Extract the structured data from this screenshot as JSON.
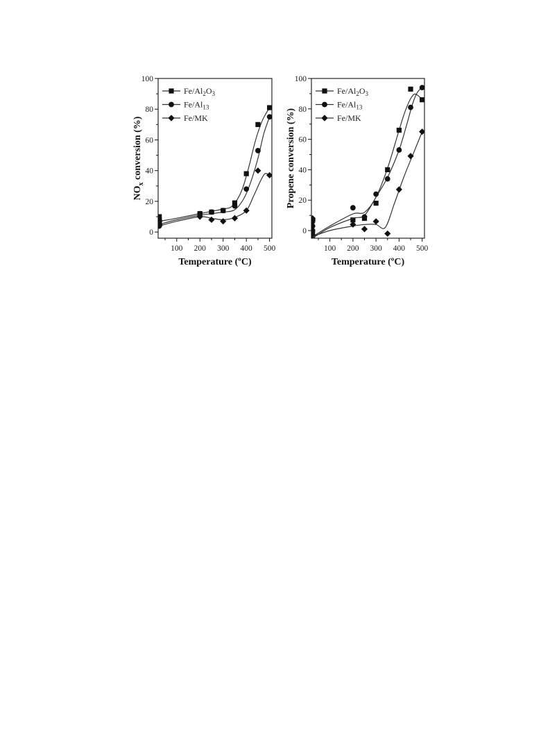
{
  "chart_data": [
    {
      "type": "scatter",
      "panel": "left",
      "xlabel": "Temperature (ºC)",
      "ylabel": "NOx conversion (%)",
      "ylabel_main": "NO",
      "ylabel_sub": "x",
      "ylabel_rest": " conversion (%)",
      "xlim": [
        20,
        510
      ],
      "ylim": [
        -4,
        100
      ],
      "xticks": [
        100,
        200,
        300,
        400,
        500
      ],
      "yticks": [
        0,
        20,
        40,
        60,
        80,
        100
      ],
      "legend_position": "top-left",
      "series": [
        {
          "name": "Fe/Al2O3",
          "legend_parts": [
            [
              "Fe/Al",
              ""
            ],
            [
              "2",
              "sub"
            ],
            [
              "O",
              ""
            ],
            [
              "3",
              "sub"
            ]
          ],
          "marker": "square",
          "points": [
            [
              25,
              10
            ],
            [
              25,
              8
            ],
            [
              25,
              6
            ],
            [
              25,
              5
            ],
            [
              200,
              12
            ],
            [
              250,
              13
            ],
            [
              300,
              14
            ],
            [
              350,
              19
            ],
            [
              400,
              38
            ],
            [
              450,
              70
            ],
            [
              500,
              81
            ]
          ],
          "curve": [
            [
              25,
              7
            ],
            [
              100,
              9
            ],
            [
              200,
              12
            ],
            [
              250,
              13.5
            ],
            [
              300,
              15
            ],
            [
              340,
              17
            ],
            [
              380,
              27
            ],
            [
              410,
              42
            ],
            [
              440,
              60
            ],
            [
              470,
              73
            ],
            [
              500,
              81
            ]
          ]
        },
        {
          "name": "Fe/Al13",
          "legend_parts": [
            [
              "Fe/Al",
              ""
            ],
            [
              "13",
              "sub"
            ]
          ],
          "marker": "circle",
          "points": [
            [
              25,
              8
            ],
            [
              25,
              6
            ],
            [
              25,
              5
            ],
            [
              25,
              4
            ],
            [
              200,
              12
            ],
            [
              250,
              13
            ],
            [
              300,
              14
            ],
            [
              350,
              17
            ],
            [
              400,
              28
            ],
            [
              450,
              53
            ],
            [
              500,
              75
            ]
          ],
          "curve": [
            [
              25,
              5
            ],
            [
              100,
              8
            ],
            [
              200,
              11
            ],
            [
              250,
              12
            ],
            [
              300,
              13
            ],
            [
              350,
              14.5
            ],
            [
              390,
              22
            ],
            [
              420,
              33
            ],
            [
              450,
              48
            ],
            [
              475,
              64
            ],
            [
              500,
              75
            ]
          ]
        },
        {
          "name": "Fe/MK",
          "legend_parts": [
            [
              "Fe/MK",
              ""
            ]
          ],
          "marker": "diamond",
          "points": [
            [
              25,
              7
            ],
            [
              25,
              5
            ],
            [
              25,
              4
            ],
            [
              200,
              10
            ],
            [
              250,
              8
            ],
            [
              300,
              7
            ],
            [
              350,
              9
            ],
            [
              400,
              14
            ],
            [
              450,
              40
            ],
            [
              500,
              37
            ]
          ],
          "curve": [
            [
              25,
              4
            ],
            [
              100,
              7
            ],
            [
              200,
              10
            ],
            [
              250,
              9
            ],
            [
              300,
              8
            ],
            [
              350,
              9.5
            ],
            [
              400,
              14
            ],
            [
              430,
              23
            ],
            [
              460,
              33
            ],
            [
              480,
              38
            ],
            [
              500,
              37
            ]
          ]
        }
      ]
    },
    {
      "type": "scatter",
      "panel": "right",
      "xlabel": "Temperature (ºC)",
      "ylabel": "Propene conversion (%)",
      "xlim": [
        20,
        510
      ],
      "ylim": [
        -5,
        100
      ],
      "xticks": [
        100,
        200,
        300,
        400,
        500
      ],
      "yticks": [
        0,
        20,
        40,
        60,
        80,
        100
      ],
      "legend_position": "top-left",
      "series": [
        {
          "name": "Fe/Al2O3",
          "legend_parts": [
            [
              "Fe/Al",
              ""
            ],
            [
              "2",
              "sub"
            ],
            [
              "O",
              ""
            ],
            [
              "3",
              "sub"
            ]
          ],
          "marker": "square",
          "points": [
            [
              25,
              -2
            ],
            [
              25,
              -4
            ],
            [
              200,
              7
            ],
            [
              250,
              8
            ],
            [
              300,
              18
            ],
            [
              350,
              40
            ],
            [
              400,
              66
            ],
            [
              450,
              93
            ],
            [
              500,
              86
            ]
          ],
          "curve": [
            [
              25,
              -4
            ],
            [
              100,
              3
            ],
            [
              200,
              11
            ],
            [
              250,
              12
            ],
            [
              300,
              22
            ],
            [
              350,
              41
            ],
            [
              400,
              66
            ],
            [
              430,
              80
            ],
            [
              460,
              89
            ],
            [
              480,
              89
            ],
            [
              500,
              86
            ]
          ]
        },
        {
          "name": "Fe/Al13",
          "legend_parts": [
            [
              "Fe/Al",
              ""
            ],
            [
              "13",
              "sub"
            ]
          ],
          "marker": "circle",
          "points": [
            [
              25,
              6
            ],
            [
              25,
              3
            ],
            [
              25,
              0
            ],
            [
              200,
              15
            ],
            [
              250,
              9
            ],
            [
              300,
              24
            ],
            [
              350,
              34
            ],
            [
              400,
              53
            ],
            [
              450,
              81
            ],
            [
              500,
              94
            ]
          ],
          "curve": [
            [
              25,
              -5
            ],
            [
              100,
              2
            ],
            [
              200,
              8
            ],
            [
              250,
              10
            ],
            [
              300,
              22
            ],
            [
              350,
              35
            ],
            [
              400,
              53
            ],
            [
              430,
              68
            ],
            [
              460,
              84
            ],
            [
              480,
              91
            ],
            [
              500,
              94
            ]
          ]
        },
        {
          "name": "Fe/MK",
          "legend_parts": [
            [
              "Fe/MK",
              ""
            ]
          ],
          "marker": "diamond",
          "points": [
            [
              25,
              8
            ],
            [
              25,
              7
            ],
            [
              200,
              4
            ],
            [
              250,
              1
            ],
            [
              300,
              6
            ],
            [
              350,
              -2
            ],
            [
              400,
              27
            ],
            [
              450,
              49
            ],
            [
              500,
              65
            ]
          ],
          "curve": [
            [
              25,
              -4
            ],
            [
              100,
              0
            ],
            [
              200,
              3
            ],
            [
              250,
              4
            ],
            [
              300,
              4
            ],
            [
              340,
              2
            ],
            [
              380,
              18
            ],
            [
              420,
              35
            ],
            [
              460,
              50
            ],
            [
              500,
              65
            ]
          ]
        }
      ]
    }
  ]
}
